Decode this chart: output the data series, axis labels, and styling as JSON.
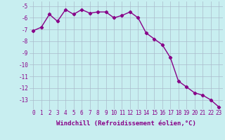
{
  "x": [
    0,
    1,
    2,
    3,
    4,
    5,
    6,
    7,
    8,
    9,
    10,
    11,
    12,
    13,
    14,
    15,
    16,
    17,
    18,
    19,
    20,
    21,
    22,
    23
  ],
  "y": [
    -7.1,
    -6.8,
    -5.7,
    -6.3,
    -5.3,
    -5.7,
    -5.3,
    -5.6,
    -5.5,
    -5.5,
    -6.0,
    -5.8,
    -5.5,
    -6.0,
    -7.3,
    -7.8,
    -8.3,
    -9.4,
    -11.4,
    -11.9,
    -12.4,
    -12.6,
    -13.0,
    -13.6
  ],
  "line_color": "#880088",
  "marker": "D",
  "marker_size": 2.2,
  "bg_color": "#c8eef0",
  "grid_color": "#aabbcc",
  "xlabel": "Windchill (Refroidissement éolien,°C)",
  "ylabel": "",
  "ylim": [
    -13.8,
    -4.6
  ],
  "xlim": [
    -0.5,
    23.5
  ],
  "yticks": [
    -13,
    -12,
    -11,
    -10,
    -9,
    -8,
    -7,
    -6,
    -5
  ],
  "xtick_labels": [
    "0",
    "1",
    "2",
    "3",
    "4",
    "5",
    "6",
    "7",
    "8",
    "9",
    "10",
    "11",
    "12",
    "13",
    "14",
    "15",
    "16",
    "17",
    "18",
    "19",
    "20",
    "21",
    "22",
    "23"
  ],
  "label_fontsize": 6.5,
  "tick_fontsize": 5.5,
  "linewidth": 1.0
}
